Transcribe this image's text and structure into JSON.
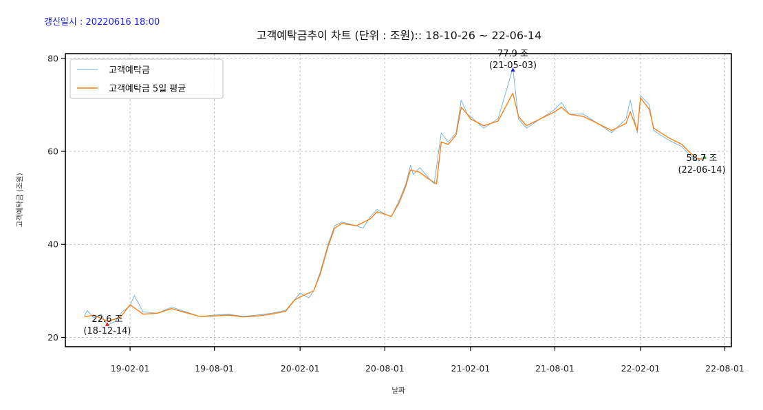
{
  "header": {
    "update_time": "갱신일시 : 20220616 18:00"
  },
  "colors": {
    "raw": "#6baed6",
    "avg": "#ff7f0e",
    "min_marker": "#d62728",
    "max_marker": "#1f1fd6",
    "last_marker": "#2ca02c"
  },
  "chart_data": {
    "type": "line",
    "title": "고객예탁금추이 차트 (단위 : 조원):: 18-10-26 ~ 22-06-14",
    "xlabel": "날짜",
    "ylabel": "고객예탁금 (조원)",
    "ylim": [
      18,
      81
    ],
    "xlim": [
      "2018-09-15",
      "2022-08-15"
    ],
    "yticks": [
      20,
      40,
      60,
      80
    ],
    "xticks": [
      "19-02-01",
      "19-08-01",
      "20-02-01",
      "20-08-01",
      "21-02-01",
      "21-08-01",
      "22-02-01",
      "22-08-01"
    ],
    "xtick_dates": [
      "2019-02-01",
      "2019-08-01",
      "2020-02-01",
      "2020-08-01",
      "2021-02-01",
      "2021-08-01",
      "2022-02-01",
      "2022-08-01"
    ],
    "grid": true,
    "legend_position": "top-left",
    "series": [
      {
        "name": "고객예탁금",
        "points": [
          [
            "2018-10-26",
            24.6
          ],
          [
            "2018-11-01",
            25.8
          ],
          [
            "2018-11-15",
            24.2
          ],
          [
            "2018-12-01",
            25.0
          ],
          [
            "2018-12-14",
            22.6
          ],
          [
            "2019-01-01",
            23.5
          ],
          [
            "2019-01-15",
            25.5
          ],
          [
            "2019-02-01",
            26.8
          ],
          [
            "2019-02-10",
            29.0
          ],
          [
            "2019-03-01",
            25.5
          ],
          [
            "2019-04-01",
            25.2
          ],
          [
            "2019-05-01",
            26.5
          ],
          [
            "2019-06-01",
            25.5
          ],
          [
            "2019-07-01",
            24.5
          ],
          [
            "2019-08-01",
            24.8
          ],
          [
            "2019-09-01",
            25.0
          ],
          [
            "2019-10-01",
            24.5
          ],
          [
            "2019-11-01",
            24.8
          ],
          [
            "2019-12-01",
            25.2
          ],
          [
            "2020-01-01",
            25.8
          ],
          [
            "2020-01-15",
            27.5
          ],
          [
            "2020-02-01",
            29.5
          ],
          [
            "2020-02-20",
            28.5
          ],
          [
            "2020-03-01",
            30.0
          ],
          [
            "2020-03-15",
            34.0
          ],
          [
            "2020-04-01",
            40.0
          ],
          [
            "2020-04-15",
            44.0
          ],
          [
            "2020-05-01",
            44.8
          ],
          [
            "2020-06-01",
            44.0
          ],
          [
            "2020-06-15",
            43.5
          ],
          [
            "2020-07-01",
            46.0
          ],
          [
            "2020-07-15",
            47.5
          ],
          [
            "2020-08-01",
            46.5
          ],
          [
            "2020-08-15",
            46.0
          ],
          [
            "2020-09-01",
            49.5
          ],
          [
            "2020-09-15",
            53.0
          ],
          [
            "2020-09-25",
            57.0
          ],
          [
            "2020-10-01",
            55.0
          ],
          [
            "2020-10-15",
            56.5
          ],
          [
            "2020-11-01",
            54.5
          ],
          [
            "2020-11-15",
            53.0
          ],
          [
            "2020-11-30",
            64.0
          ],
          [
            "2020-12-15",
            62.0
          ],
          [
            "2021-01-01",
            64.0
          ],
          [
            "2021-01-12",
            71.0
          ],
          [
            "2021-01-25",
            68.0
          ],
          [
            "2021-02-01",
            67.5
          ],
          [
            "2021-03-01",
            65.0
          ],
          [
            "2021-04-01",
            67.0
          ],
          [
            "2021-05-03",
            77.9
          ],
          [
            "2021-05-15",
            67.0
          ],
          [
            "2021-06-01",
            65.0
          ],
          [
            "2021-07-01",
            67.0
          ],
          [
            "2021-08-01",
            69.0
          ],
          [
            "2021-08-15",
            70.5
          ],
          [
            "2021-09-01",
            68.0
          ],
          [
            "2021-10-01",
            68.0
          ],
          [
            "2021-11-01",
            66.0
          ],
          [
            "2021-12-01",
            64.0
          ],
          [
            "2022-01-01",
            67.0
          ],
          [
            "2022-01-10",
            71.0
          ],
          [
            "2022-01-25",
            64.0
          ],
          [
            "2022-02-01",
            72.0
          ],
          [
            "2022-02-20",
            70.0
          ],
          [
            "2022-03-01",
            64.5
          ],
          [
            "2022-04-01",
            62.5
          ],
          [
            "2022-05-01",
            61.0
          ],
          [
            "2022-05-15",
            59.5
          ],
          [
            "2022-06-01",
            58.0
          ],
          [
            "2022-06-14",
            58.7
          ]
        ]
      },
      {
        "name": "고객예탁금 5일 평균",
        "points": [
          [
            "2018-10-26",
            24.4
          ],
          [
            "2018-11-15",
            24.8
          ],
          [
            "2018-12-14",
            23.5
          ],
          [
            "2019-01-10",
            24.2
          ],
          [
            "2019-02-01",
            27.0
          ],
          [
            "2019-03-01",
            25.0
          ],
          [
            "2019-04-01",
            25.2
          ],
          [
            "2019-05-01",
            26.2
          ],
          [
            "2019-06-01",
            25.3
          ],
          [
            "2019-07-01",
            24.5
          ],
          [
            "2019-08-01",
            24.6
          ],
          [
            "2019-09-01",
            24.8
          ],
          [
            "2019-10-01",
            24.4
          ],
          [
            "2019-11-01",
            24.6
          ],
          [
            "2019-12-01",
            25.0
          ],
          [
            "2020-01-01",
            25.6
          ],
          [
            "2020-01-20",
            28.0
          ],
          [
            "2020-02-01",
            28.7
          ],
          [
            "2020-03-01",
            30.0
          ],
          [
            "2020-03-15",
            33.5
          ],
          [
            "2020-04-01",
            39.5
          ],
          [
            "2020-04-15",
            43.5
          ],
          [
            "2020-05-01",
            44.5
          ],
          [
            "2020-06-01",
            44.0
          ],
          [
            "2020-07-01",
            45.5
          ],
          [
            "2020-07-15",
            47.0
          ],
          [
            "2020-08-01",
            46.5
          ],
          [
            "2020-08-15",
            46.0
          ],
          [
            "2020-09-01",
            49.0
          ],
          [
            "2020-09-15",
            52.5
          ],
          [
            "2020-09-25",
            56.0
          ],
          [
            "2020-10-15",
            55.5
          ],
          [
            "2020-11-01",
            54.2
          ],
          [
            "2020-11-20",
            53.0
          ],
          [
            "2020-11-30",
            62.0
          ],
          [
            "2020-12-15",
            61.5
          ],
          [
            "2021-01-01",
            63.5
          ],
          [
            "2021-01-12",
            69.5
          ],
          [
            "2021-01-25",
            68.0
          ],
          [
            "2021-02-01",
            67.0
          ],
          [
            "2021-03-01",
            65.5
          ],
          [
            "2021-04-01",
            66.5
          ],
          [
            "2021-05-03",
            72.5
          ],
          [
            "2021-05-15",
            67.5
          ],
          [
            "2021-06-01",
            65.5
          ],
          [
            "2021-07-01",
            67.0
          ],
          [
            "2021-08-01",
            68.5
          ],
          [
            "2021-08-15",
            69.5
          ],
          [
            "2021-09-01",
            68.0
          ],
          [
            "2021-10-01",
            67.5
          ],
          [
            "2021-11-01",
            66.0
          ],
          [
            "2021-12-01",
            64.5
          ],
          [
            "2022-01-01",
            66.0
          ],
          [
            "2022-01-10",
            68.5
          ],
          [
            "2022-01-25",
            64.5
          ],
          [
            "2022-02-01",
            71.5
          ],
          [
            "2022-02-20",
            69.0
          ],
          [
            "2022-03-01",
            65.0
          ],
          [
            "2022-04-01",
            63.0
          ],
          [
            "2022-05-01",
            61.5
          ],
          [
            "2022-05-15",
            60.0
          ],
          [
            "2022-06-01",
            58.5
          ],
          [
            "2022-06-14",
            58.3
          ]
        ]
      }
    ],
    "annotations": [
      {
        "kind": "min",
        "date": "2018-12-14",
        "value": 22.6,
        "value_text": "22.6 조",
        "date_text": "(18-12-14)"
      },
      {
        "kind": "max",
        "date": "2021-05-03",
        "value": 77.9,
        "value_text": "77.9 조",
        "date_text": "(21-05-03)"
      },
      {
        "kind": "last",
        "date": "2022-06-14",
        "value": 58.7,
        "value_text": "58.7 조",
        "date_text": "(22-06-14)"
      }
    ]
  }
}
